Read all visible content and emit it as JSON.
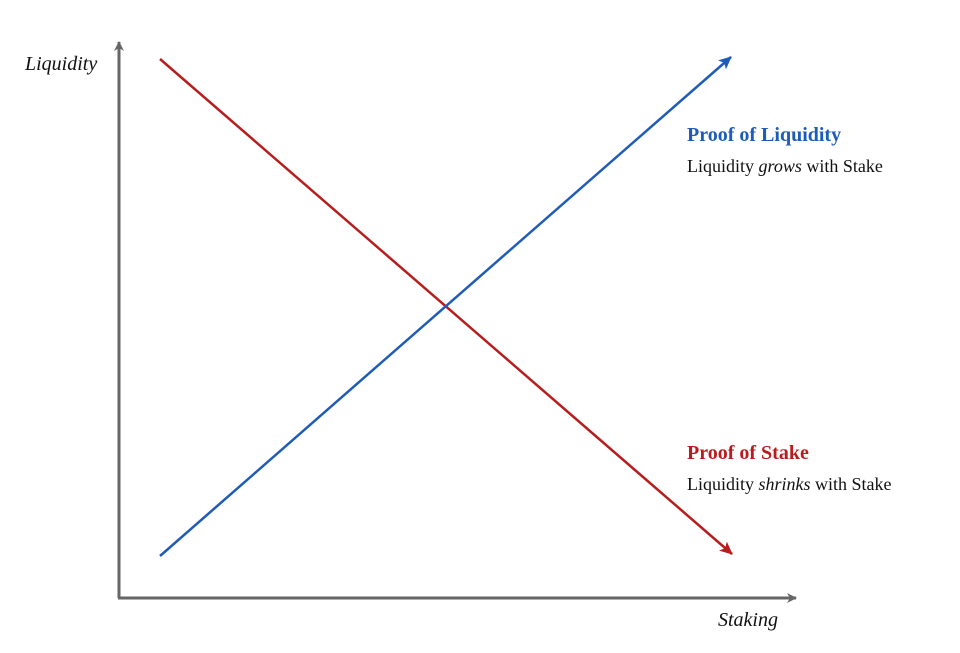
{
  "axes": {
    "y_label": "Liquidity",
    "x_label": "Staking"
  },
  "series": {
    "pol": {
      "title": "Proof of Liquidity",
      "desc_pre": "Liquidity ",
      "desc_em": "grows",
      "desc_post": " with Stake",
      "color": "#1f5bb8",
      "trend": "increasing"
    },
    "pos": {
      "title": "Proof of Stake",
      "desc_pre": "Liquidity ",
      "desc_em": "shrinks",
      "desc_post": " with Stake",
      "color": "#b81d1d",
      "trend": "decreasing"
    }
  },
  "colors": {
    "axis": "#666666",
    "text": "#111111"
  }
}
